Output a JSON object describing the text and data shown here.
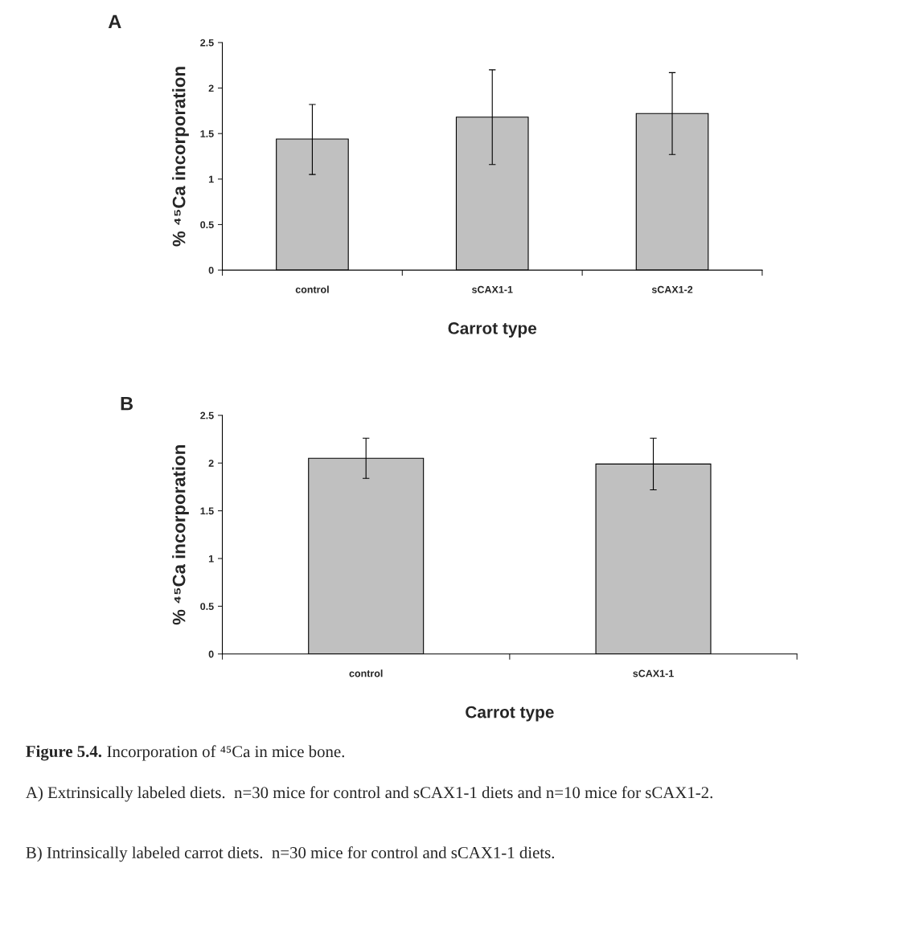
{
  "chart_data": [
    {
      "type": "bar",
      "categories": [
        "control",
        "sCAX1-1",
        "sCAX1-2"
      ],
      "values": [
        1.44,
        1.68,
        1.72
      ],
      "errors": [
        [
          1.05,
          1.82
        ],
        [
          1.16,
          2.2
        ],
        [
          1.27,
          2.17
        ]
      ],
      "color": "#c0c0c0",
      "xlabel": "Carrot type",
      "ylabel": "% ⁴⁵Ca incorporation",
      "ylim": [
        0,
        2.5
      ],
      "yticks": [
        0,
        0.5,
        1,
        1.5,
        2,
        2.5
      ],
      "grid": false,
      "legend": false,
      "annotations": [
        "A"
      ]
    },
    {
      "type": "bar",
      "categories": [
        "control",
        "sCAX1-1"
      ],
      "values": [
        2.05,
        1.99
      ],
      "errors": [
        [
          1.84,
          2.26
        ],
        [
          1.72,
          2.26
        ]
      ],
      "color": "#c0c0c0",
      "xlabel": "Carrot type",
      "ylabel": "% ⁴⁵Ca incorporation",
      "ylim": [
        0,
        2.5
      ],
      "yticks": [
        0,
        0.5,
        1,
        1.5,
        2,
        2.5
      ],
      "grid": false,
      "legend": false,
      "annotations": [
        "B",
        "Figure 5.4.",
        "Incorporation of ⁴⁵Ca in mice bone.",
        "A) Extrinsically labeled diets.  n=30 mice for control and sCAX1-1 diets and n=10 mice for sCAX1-2.",
        "B) Intrinsically labeled carrot diets.  n=30 mice for control and sCAX1-1 diets."
      ]
    }
  ]
}
